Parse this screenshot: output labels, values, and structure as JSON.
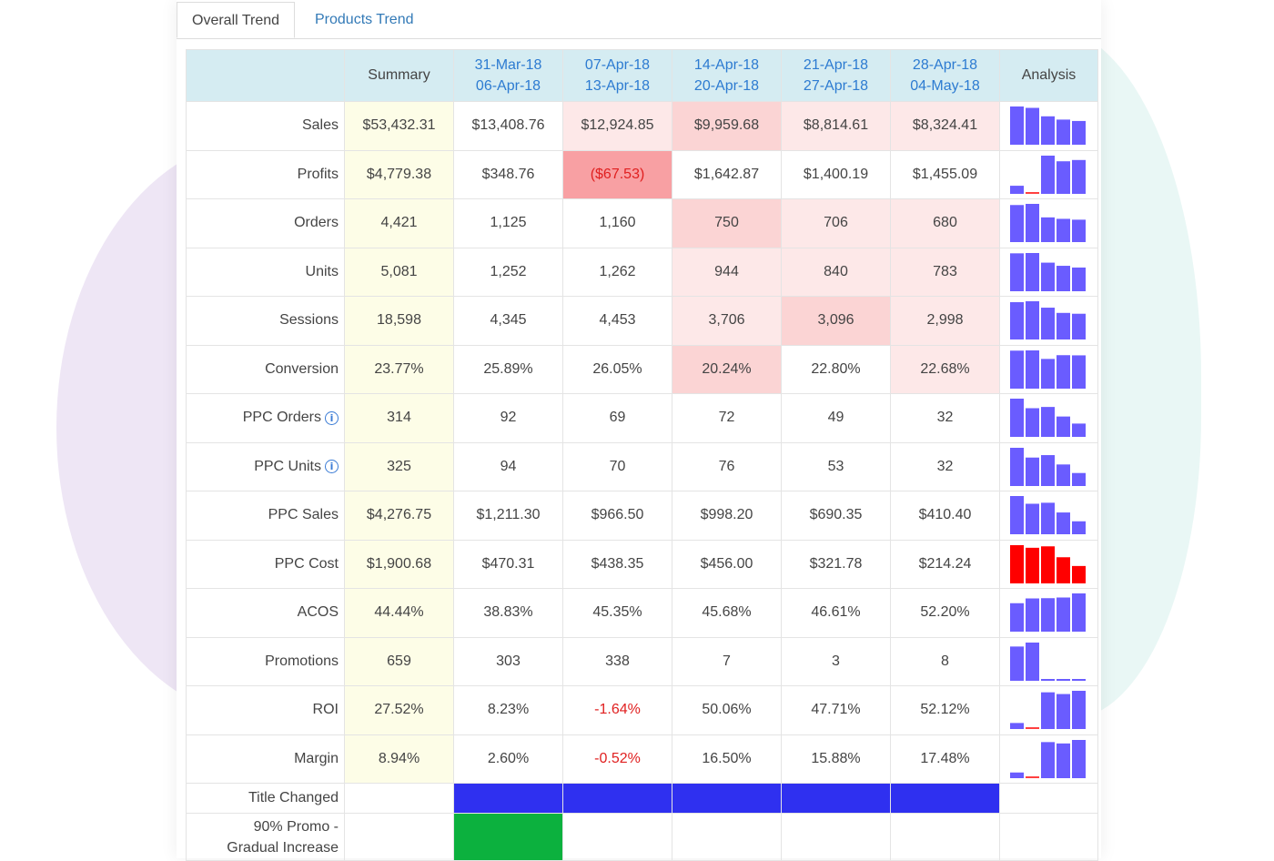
{
  "tabs": [
    "Overall Trend",
    "Products Trend"
  ],
  "header": {
    "summary": "Summary",
    "analysis": "Analysis",
    "weeks": [
      {
        "start": "31-Mar-18",
        "end": "06-Apr-18"
      },
      {
        "start": "07-Apr-18",
        "end": "13-Apr-18"
      },
      {
        "start": "14-Apr-18",
        "end": "20-Apr-18"
      },
      {
        "start": "21-Apr-18",
        "end": "27-Apr-18"
      },
      {
        "start": "28-Apr-18",
        "end": "04-May-18"
      }
    ]
  },
  "colors": {
    "light_red": "#fde8e8",
    "mid_red": "#fbd4d4",
    "strong_red": "#f8a0a3",
    "bar_blue": "#6a5cff",
    "bar_red": "#ff0000",
    "flag_blue": "#2f30f0",
    "flag_green": "#0cb13e"
  },
  "rows": [
    {
      "label": "Sales",
      "summary": "$53,432.31",
      "values": [
        "$13,408.76",
        "$12,924.85",
        "$9,959.68",
        "$8,814.61",
        "$8,324.41"
      ],
      "shade": [
        "",
        "light_red",
        "mid_red",
        "light_red",
        "light_red"
      ],
      "spark": [
        13408.76,
        12924.85,
        9959.68,
        8814.61,
        8324.41
      ],
      "spark_color": "bar_blue",
      "info": false
    },
    {
      "label": "Profits",
      "summary": "$4,779.38",
      "values": [
        "$348.76",
        "($67.53)",
        "$1,642.87",
        "$1,400.19",
        "$1,455.09"
      ],
      "shade": [
        "",
        "strong_red",
        "",
        "",
        ""
      ],
      "negative": [
        false,
        true,
        false,
        false,
        false
      ],
      "spark": [
        348.76,
        -67.53,
        1642.87,
        1400.19,
        1455.09
      ],
      "spark_color": "bar_blue",
      "info": false
    },
    {
      "label": "Orders",
      "summary": "4,421",
      "values": [
        "1,125",
        "1,160",
        "750",
        "706",
        "680"
      ],
      "shade": [
        "",
        "",
        "mid_red",
        "light_red",
        "light_red"
      ],
      "spark": [
        1125,
        1160,
        750,
        706,
        680
      ],
      "spark_color": "bar_blue",
      "info": false
    },
    {
      "label": "Units",
      "summary": "5,081",
      "values": [
        "1,252",
        "1,262",
        "944",
        "840",
        "783"
      ],
      "shade": [
        "",
        "",
        "light_red",
        "light_red",
        "light_red"
      ],
      "spark": [
        1252,
        1262,
        944,
        840,
        783
      ],
      "spark_color": "bar_blue",
      "info": false
    },
    {
      "label": "Sessions",
      "summary": "18,598",
      "values": [
        "4,345",
        "4,453",
        "3,706",
        "3,096",
        "2,998"
      ],
      "shade": [
        "",
        "",
        "light_red",
        "mid_red",
        "light_red"
      ],
      "spark": [
        4345,
        4453,
        3706,
        3096,
        2998
      ],
      "spark_color": "bar_blue",
      "info": false
    },
    {
      "label": "Conversion",
      "summary": "23.77%",
      "values": [
        "25.89%",
        "26.05%",
        "20.24%",
        "22.80%",
        "22.68%"
      ],
      "shade": [
        "",
        "",
        "mid_red",
        "",
        "light_red"
      ],
      "spark": [
        25.89,
        26.05,
        20.24,
        22.8,
        22.68
      ],
      "spark_color": "bar_blue",
      "info": false
    },
    {
      "label": "PPC Orders",
      "summary": "314",
      "values": [
        "92",
        "69",
        "72",
        "49",
        "32"
      ],
      "shade": [
        "",
        "",
        "",
        "",
        ""
      ],
      "spark": [
        92,
        69,
        72,
        49,
        32
      ],
      "spark_color": "bar_blue",
      "info": true
    },
    {
      "label": "PPC Units",
      "summary": "325",
      "values": [
        "94",
        "70",
        "76",
        "53",
        "32"
      ],
      "shade": [
        "",
        "",
        "",
        "",
        ""
      ],
      "spark": [
        94,
        70,
        76,
        53,
        32
      ],
      "spark_color": "bar_blue",
      "info": true
    },
    {
      "label": "PPC Sales",
      "summary": "$4,276.75",
      "values": [
        "$1,211.30",
        "$966.50",
        "$998.20",
        "$690.35",
        "$410.40"
      ],
      "shade": [
        "",
        "",
        "",
        "",
        ""
      ],
      "spark": [
        1211.3,
        966.5,
        998.2,
        690.35,
        410.4
      ],
      "spark_color": "bar_blue",
      "info": false
    },
    {
      "label": "PPC Cost",
      "summary": "$1,900.68",
      "values": [
        "$470.31",
        "$438.35",
        "$456.00",
        "$321.78",
        "$214.24"
      ],
      "shade": [
        "",
        "",
        "",
        "",
        ""
      ],
      "spark": [
        470.31,
        438.35,
        456.0,
        321.78,
        214.24
      ],
      "spark_color": "bar_red",
      "info": false
    },
    {
      "label": "ACOS",
      "summary": "44.44%",
      "values": [
        "38.83%",
        "45.35%",
        "45.68%",
        "46.61%",
        "52.20%"
      ],
      "shade": [
        "",
        "",
        "",
        "",
        ""
      ],
      "spark": [
        38.83,
        45.35,
        45.68,
        46.61,
        52.2
      ],
      "spark_color": "bar_blue",
      "info": false
    },
    {
      "label": "Promotions",
      "summary": "659",
      "values": [
        "303",
        "338",
        "7",
        "3",
        "8"
      ],
      "shade": [
        "",
        "",
        "",
        "",
        ""
      ],
      "spark": [
        303,
        338,
        7,
        3,
        8
      ],
      "spark_color": "bar_blue",
      "info": false
    },
    {
      "label": "ROI",
      "summary": "27.52%",
      "values": [
        "8.23%",
        "-1.64%",
        "50.06%",
        "47.71%",
        "52.12%"
      ],
      "shade": [
        "",
        "",
        "",
        "",
        ""
      ],
      "negative": [
        false,
        true,
        false,
        false,
        false
      ],
      "spark": [
        8.23,
        -1.64,
        50.06,
        47.71,
        52.12
      ],
      "spark_color": "bar_blue",
      "info": false
    },
    {
      "label": "Margin",
      "summary": "8.94%",
      "values": [
        "2.60%",
        "-0.52%",
        "16.50%",
        "15.88%",
        "17.48%"
      ],
      "shade": [
        "",
        "",
        "",
        "",
        ""
      ],
      "negative": [
        false,
        true,
        false,
        false,
        false
      ],
      "spark": [
        2.6,
        -0.52,
        16.5,
        15.88,
        17.48
      ],
      "spark_color": "bar_blue",
      "info": false
    }
  ],
  "flags": [
    {
      "label": "Title Changed",
      "cells": [
        true,
        true,
        true,
        true,
        true
      ],
      "color": "flag_blue",
      "label_class": "flag-label-blue",
      "height_class": "flag"
    },
    {
      "label_lines": [
        "90% Promo -",
        "Gradual Increase"
      ],
      "cells": [
        true,
        false,
        false,
        false,
        false
      ],
      "color": "flag_green",
      "label_class": "flag-label-green",
      "height_class": "flag2"
    }
  ]
}
